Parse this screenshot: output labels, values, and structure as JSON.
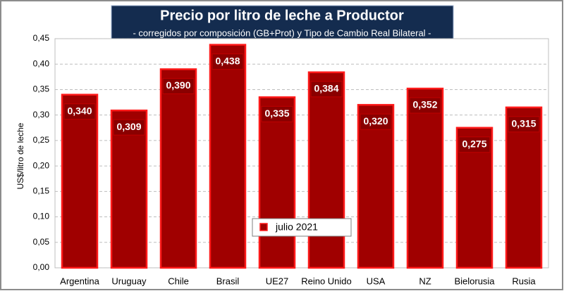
{
  "chart_data": {
    "type": "bar",
    "title": "Precio por litro de leche a Productor",
    "subtitle": "-  corregidos por composición (GB+Prot) y Tipo de Cambio Real Bilateral -",
    "y_label": "US$/litro de leche",
    "categories": [
      "Argentina",
      "Uruguay",
      "Chile",
      "Brasil",
      "UE27",
      "Reino Unido",
      "USA",
      "NZ",
      "Bielorusia",
      "Rusia"
    ],
    "series": [
      {
        "name": "julio 2021",
        "color": "#a00000",
        "values": [
          0.34,
          0.309,
          0.39,
          0.438,
          0.335,
          0.384,
          0.32,
          0.352,
          0.275,
          0.315
        ],
        "value_labels": [
          "0,340",
          "0,309",
          "0,390",
          "0,438",
          "0,335",
          "0,384",
          "0,320",
          "0,352",
          "0,275",
          "0,315"
        ]
      }
    ],
    "ylim": [
      0,
      0.45
    ],
    "yticks": [
      {
        "value": 0,
        "label": "0,00"
      },
      {
        "value": 0.05,
        "label": "0,05"
      },
      {
        "value": 0.1,
        "label": "0,10"
      },
      {
        "value": 0.15,
        "label": "0,15"
      },
      {
        "value": 0.2,
        "label": "0,20"
      },
      {
        "value": 0.25,
        "label": "0,25"
      },
      {
        "value": 0.3,
        "label": "0,30"
      },
      {
        "value": 0.35,
        "label": "0,35"
      },
      {
        "value": 0.4,
        "label": "0,40"
      },
      {
        "value": 0.45,
        "label": "0,45"
      }
    ],
    "grid": true
  }
}
